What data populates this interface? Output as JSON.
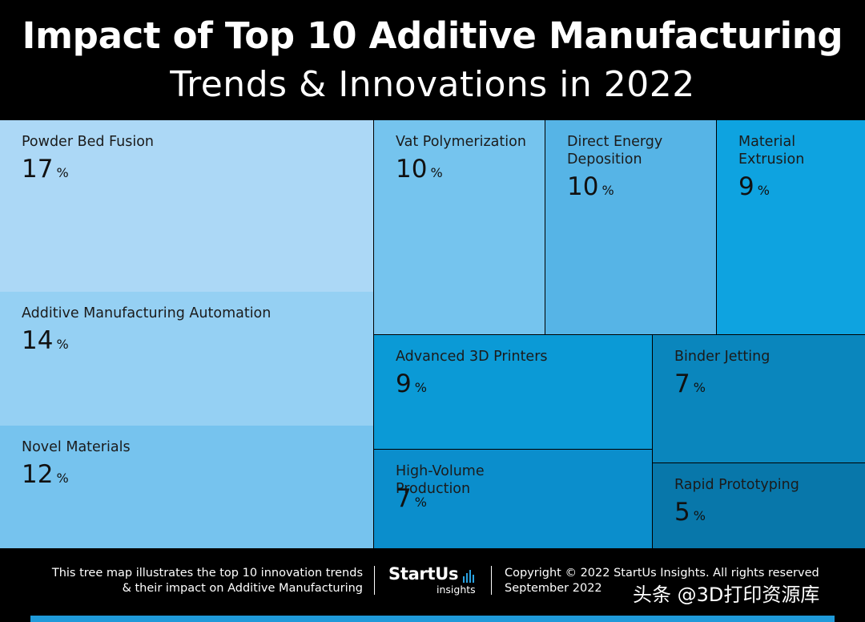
{
  "header": {
    "title_line1": "Impact of Top 10 Additive Manufacturing",
    "title_line2": "Trends & Innovations in 2022"
  },
  "chart_data": {
    "type": "treemap",
    "title": "Impact of Top 10 Additive Manufacturing Trends & Innovations in 2022",
    "unit": "%",
    "items": [
      {
        "label": "Powder Bed Fusion",
        "value": 17,
        "color": "#acd8f6"
      },
      {
        "label": "Additive Manufacturing Automation",
        "value": 14,
        "color": "#95d0f3"
      },
      {
        "label": "Novel Materials",
        "value": 12,
        "color": "#76c3ee"
      },
      {
        "label": "Vat Polymerization",
        "value": 10,
        "color": "#75c4ee"
      },
      {
        "label": "Direct Energy Deposition",
        "value": 10,
        "color": "#56b4e6"
      },
      {
        "label": "Material Extrusion",
        "value": 9,
        "color": "#0ea3e0"
      },
      {
        "label": "Advanced 3D Printers",
        "value": 9,
        "color": "#0b9ad6"
      },
      {
        "label": "Binder Jetting",
        "value": 7,
        "color": "#0a86bd"
      },
      {
        "label": "High-Volume Production",
        "value": 7,
        "color": "#0b8ecc"
      },
      {
        "label": "Rapid Prototyping",
        "value": 5,
        "color": "#0877aa"
      }
    ]
  },
  "footer": {
    "description_line1": "This tree map illustrates the top 10 innovation trends",
    "description_line2": "& their impact on Additive Manufacturing",
    "logo_text": "StartUs",
    "logo_subtext": "insights",
    "copyright": "Copyright © 2022 StartUs Insights. All rights reserved",
    "date": "September 2022",
    "watermark": "头条 @3D打印资源库",
    "accent_color": "#1f9ad9"
  }
}
